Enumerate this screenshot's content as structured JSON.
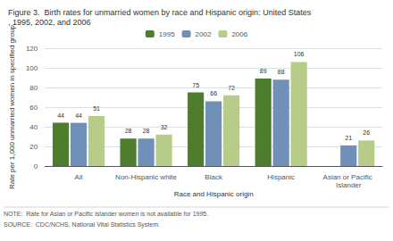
{
  "chart_data": {
    "type": "bar",
    "title": "Figure 3.  Birth rates for unmarried women by race and Hispanic origin: United States, 1995, 2002, and 2006",
    "categories": [
      "All",
      "Non-Hispanic white",
      "Black",
      "Hispanic",
      "Asian or Pacific Islander"
    ],
    "series": [
      {
        "name": "1995",
        "color": "#4e7d2e",
        "values": [
          44,
          28,
          75,
          89,
          null
        ]
      },
      {
        "name": "2002",
        "color": "#7090b8",
        "values": [
          44,
          28,
          66,
          88,
          21
        ]
      },
      {
        "name": "2006",
        "color": "#b8cc8a",
        "values": [
          51,
          32,
          72,
          106,
          26
        ]
      }
    ],
    "xlabel": "Race and Hispanic origin",
    "ylabel": "Rate per 1,000 unmarried women in specified group",
    "ylim": [
      0,
      120
    ],
    "yticks": [
      0,
      20,
      40,
      60,
      80,
      100,
      120
    ],
    "grid": true,
    "legend": "top",
    "data_labels": true,
    "annotations": [
      "NOTE:  Rate for Asian or Pacific Islander women is not available for 1995.",
      "SOURCE:  CDC/NCHS, National Vital Statistics System."
    ]
  }
}
